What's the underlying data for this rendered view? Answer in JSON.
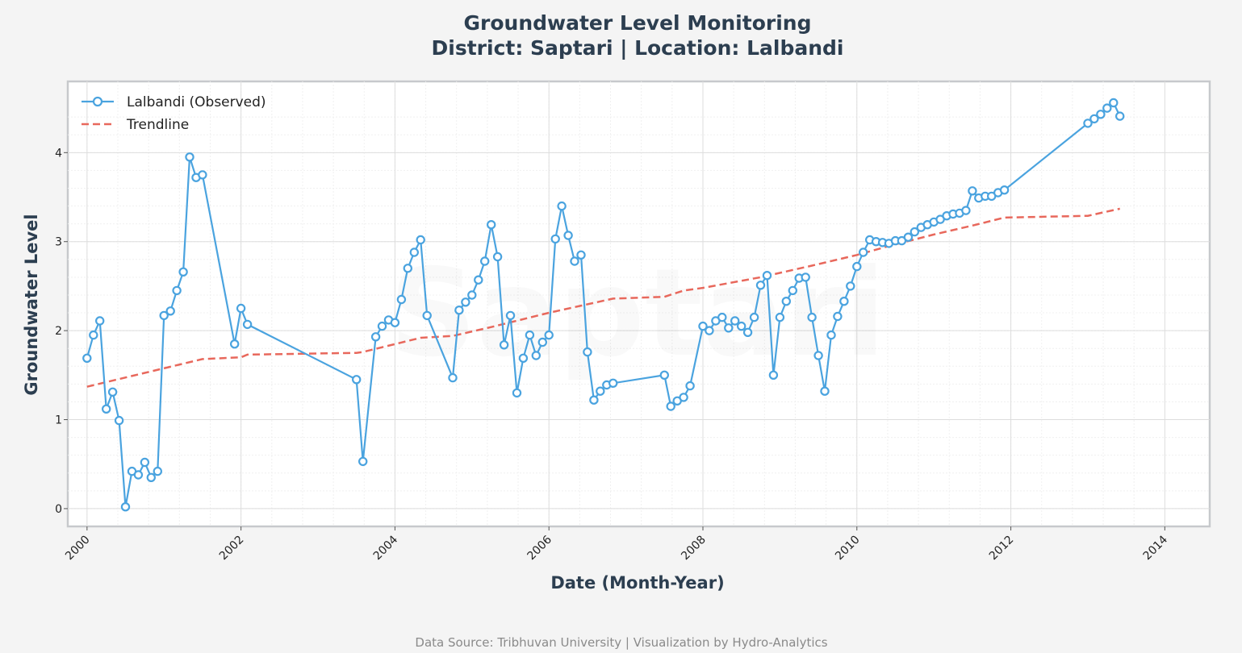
{
  "title_line1": "Groundwater Level Monitoring",
  "title_line2": "District: Saptari | Location: Lalbandi",
  "footer": "Data Source: Tribhuvan University | Visualization by Hydro-Analytics",
  "watermark": "Saptari",
  "colors": {
    "observed": "#4aa3df",
    "trend": "#e8685c",
    "axis_text": "#2c3e50",
    "background": "#f4f4f4",
    "plot_background": "#ffffff"
  },
  "chart_data": {
    "type": "line",
    "title": "Groundwater Level Monitoring\nDistrict: Saptari | Location: Lalbandi",
    "xlabel": "Date (Month-Year)",
    "ylabel": "Groundwater Level",
    "x_ticks": [
      "2000",
      "2002",
      "2004",
      "2006",
      "2008",
      "2010",
      "2012",
      "2014"
    ],
    "y_ticks": [
      "0",
      "1",
      "2",
      "3",
      "4"
    ],
    "xlim": [
      "1999-10",
      "2014-08"
    ],
    "ylim": [
      -0.2,
      4.8
    ],
    "grid": true,
    "legend_position": "top-left",
    "series": [
      {
        "name": "Lalbandi (Observed)",
        "style": "line-with-circle-markers",
        "color": "#4aa3df",
        "points": [
          [
            "2000-01",
            1.69
          ],
          [
            "2000-02",
            1.95
          ],
          [
            "2000-03",
            2.11
          ],
          [
            "2000-04",
            1.12
          ],
          [
            "2000-05",
            1.31
          ],
          [
            "2000-06",
            0.99
          ],
          [
            "2000-07",
            0.02
          ],
          [
            "2000-08",
            0.42
          ],
          [
            "2000-09",
            0.38
          ],
          [
            "2000-10",
            0.52
          ],
          [
            "2000-11",
            0.35
          ],
          [
            "2000-12",
            0.42
          ],
          [
            "2001-01",
            2.17
          ],
          [
            "2001-02",
            2.22
          ],
          [
            "2001-03",
            2.45
          ],
          [
            "2001-04",
            2.66
          ],
          [
            "2001-05",
            3.95
          ],
          [
            "2001-06",
            3.72
          ],
          [
            "2001-07",
            3.75
          ],
          [
            "2001-12",
            1.85
          ],
          [
            "2002-01",
            2.25
          ],
          [
            "2002-02",
            2.07
          ],
          [
            "2003-07",
            1.45
          ],
          [
            "2003-08",
            0.53
          ],
          [
            "2003-10",
            1.93
          ],
          [
            "2003-11",
            2.05
          ],
          [
            "2003-12",
            2.12
          ],
          [
            "2004-01",
            2.09
          ],
          [
            "2004-02",
            2.35
          ],
          [
            "2004-03",
            2.7
          ],
          [
            "2004-04",
            2.88
          ],
          [
            "2004-05",
            3.02
          ],
          [
            "2004-06",
            2.17
          ],
          [
            "2004-10",
            1.47
          ],
          [
            "2004-11",
            2.23
          ],
          [
            "2004-12",
            2.32
          ],
          [
            "2005-01",
            2.4
          ],
          [
            "2005-02",
            2.57
          ],
          [
            "2005-03",
            2.78
          ],
          [
            "2005-04",
            3.19
          ],
          [
            "2005-05",
            2.83
          ],
          [
            "2005-06",
            1.84
          ],
          [
            "2005-07",
            2.17
          ],
          [
            "2005-08",
            1.3
          ],
          [
            "2005-09",
            1.69
          ],
          [
            "2005-10",
            1.95
          ],
          [
            "2005-11",
            1.72
          ],
          [
            "2005-12",
            1.87
          ],
          [
            "2006-01",
            1.95
          ],
          [
            "2006-02",
            3.03
          ],
          [
            "2006-03",
            3.4
          ],
          [
            "2006-04",
            3.07
          ],
          [
            "2006-05",
            2.78
          ],
          [
            "2006-06",
            2.85
          ],
          [
            "2006-07",
            1.76
          ],
          [
            "2006-08",
            1.22
          ],
          [
            "2006-09",
            1.32
          ],
          [
            "2006-10",
            1.39
          ],
          [
            "2006-11",
            1.41
          ],
          [
            "2007-07",
            1.5
          ],
          [
            "2007-08",
            1.15
          ],
          [
            "2007-09",
            1.21
          ],
          [
            "2007-10",
            1.25
          ],
          [
            "2007-11",
            1.38
          ],
          [
            "2008-01",
            2.05
          ],
          [
            "2008-02",
            2.0
          ],
          [
            "2008-03",
            2.11
          ],
          [
            "2008-04",
            2.15
          ],
          [
            "2008-05",
            2.03
          ],
          [
            "2008-06",
            2.11
          ],
          [
            "2008-07",
            2.05
          ],
          [
            "2008-08",
            1.98
          ],
          [
            "2008-09",
            2.15
          ],
          [
            "2008-10",
            2.51
          ],
          [
            "2008-11",
            2.62
          ],
          [
            "2008-12",
            1.5
          ],
          [
            "2009-01",
            2.15
          ],
          [
            "2009-02",
            2.33
          ],
          [
            "2009-03",
            2.45
          ],
          [
            "2009-04",
            2.59
          ],
          [
            "2009-05",
            2.6
          ],
          [
            "2009-06",
            2.15
          ],
          [
            "2009-07",
            1.72
          ],
          [
            "2009-08",
            1.32
          ],
          [
            "2009-09",
            1.95
          ],
          [
            "2009-10",
            2.16
          ],
          [
            "2009-11",
            2.33
          ],
          [
            "2009-12",
            2.5
          ],
          [
            "2010-01",
            2.72
          ],
          [
            "2010-02",
            2.88
          ],
          [
            "2010-03",
            3.02
          ],
          [
            "2010-04",
            3.0
          ],
          [
            "2010-05",
            2.99
          ],
          [
            "2010-06",
            2.98
          ],
          [
            "2010-07",
            3.01
          ],
          [
            "2010-08",
            3.01
          ],
          [
            "2010-09",
            3.05
          ],
          [
            "2010-10",
            3.11
          ],
          [
            "2010-11",
            3.16
          ],
          [
            "2010-12",
            3.19
          ],
          [
            "2011-01",
            3.22
          ],
          [
            "2011-02",
            3.25
          ],
          [
            "2011-03",
            3.29
          ],
          [
            "2011-04",
            3.31
          ],
          [
            "2011-05",
            3.32
          ],
          [
            "2011-06",
            3.35
          ],
          [
            "2011-07",
            3.57
          ],
          [
            "2011-08",
            3.49
          ],
          [
            "2011-09",
            3.51
          ],
          [
            "2011-10",
            3.51
          ],
          [
            "2011-11",
            3.55
          ],
          [
            "2011-12",
            3.58
          ],
          [
            "2013-01",
            4.33
          ],
          [
            "2013-02",
            4.38
          ],
          [
            "2013-03",
            4.43
          ],
          [
            "2013-04",
            4.5
          ],
          [
            "2013-05",
            4.56
          ],
          [
            "2013-06",
            4.41
          ]
        ]
      },
      {
        "name": "Trendline",
        "style": "dashed-line",
        "color": "#e8685c",
        "points": [
          [
            "2000-01",
            1.37
          ],
          [
            "2001-07",
            1.68
          ],
          [
            "2002-01",
            1.7
          ],
          [
            "2002-02",
            1.73
          ],
          [
            "2003-07",
            1.75
          ],
          [
            "2003-08",
            1.76
          ],
          [
            "2004-05",
            1.92
          ],
          [
            "2004-10",
            1.94
          ],
          [
            "2005-04",
            2.04
          ],
          [
            "2006-01",
            2.2
          ],
          [
            "2006-11",
            2.36
          ],
          [
            "2007-07",
            2.38
          ],
          [
            "2007-10",
            2.45
          ],
          [
            "2008-01",
            2.48
          ],
          [
            "2008-10",
            2.6
          ],
          [
            "2009-06",
            2.73
          ],
          [
            "2010-01",
            2.85
          ],
          [
            "2010-06",
            2.95
          ],
          [
            "2011-01",
            3.08
          ],
          [
            "2011-07",
            3.18
          ],
          [
            "2011-12",
            3.27
          ],
          [
            "2013-01",
            3.29
          ],
          [
            "2013-06",
            3.37
          ]
        ]
      }
    ]
  }
}
